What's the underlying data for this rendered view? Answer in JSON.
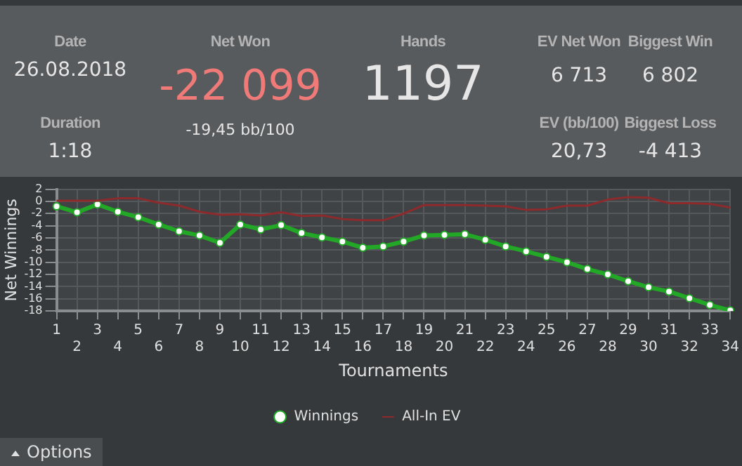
{
  "chart_data": {
    "type": "line",
    "annotations": [
      "Date",
      "26.08.2018",
      "Duration",
      "1:18",
      "Net Won",
      "-22 099",
      "-19,45 bb/100",
      "Hands",
      "1197",
      "EV Net Won",
      "6 713",
      "EV (bb/100)",
      "20,73",
      "Biggest Win",
      "6 802",
      "Biggest Loss",
      "-4 413",
      "Options"
    ],
    "xlabel": "Tournaments",
    "ylabel": "Net Winnings",
    "categories": [
      "1",
      "2",
      "3",
      "4",
      "5",
      "6",
      "7",
      "8",
      "9",
      "10",
      "11",
      "12",
      "13",
      "14",
      "15",
      "16",
      "17",
      "18",
      "19",
      "20",
      "21",
      "22",
      "23",
      "24",
      "25",
      "26",
      "27",
      "28",
      "29",
      "30",
      "31",
      "32",
      "33",
      "34"
    ],
    "series": [
      {
        "name": "Winnings",
        "color": "#22a826",
        "marker": "circle",
        "values": [
          -0.8,
          -1.8,
          -0.5,
          -1.7,
          -2.6,
          -3.8,
          -4.9,
          -5.6,
          -6.8,
          -3.8,
          -4.6,
          -3.9,
          -5.2,
          -5.9,
          -6.6,
          -7.6,
          -7.4,
          -6.6,
          -5.6,
          -5.5,
          -5.4,
          -6.3,
          -7.4,
          -8.2,
          -9.1,
          -10.0,
          -11.1,
          -12.0,
          -13.1,
          -14.1,
          -14.8,
          -15.9,
          -17.0,
          -17.9
        ]
      },
      {
        "name": "All-In EV",
        "color": "#8e2a2c",
        "marker": "none",
        "values": [
          0.1,
          0.1,
          0.1,
          0.5,
          0.5,
          -0.2,
          -0.7,
          -1.7,
          -2.2,
          -2.1,
          -2.3,
          -1.8,
          -2.4,
          -2.3,
          -2.9,
          -3.1,
          -3.1,
          -2.0,
          -0.6,
          -0.6,
          -0.6,
          -0.7,
          -0.8,
          -1.4,
          -1.3,
          -0.7,
          -0.7,
          0.3,
          0.7,
          0.6,
          -0.3,
          -0.3,
          -0.4,
          -1.0
        ]
      }
    ],
    "ylim": [
      -18,
      2
    ],
    "yticks": [
      2,
      0,
      -2,
      -4,
      -6,
      -8,
      -10,
      -12,
      -14,
      -16,
      -18
    ],
    "grid": true,
    "legend": "bottom"
  }
}
